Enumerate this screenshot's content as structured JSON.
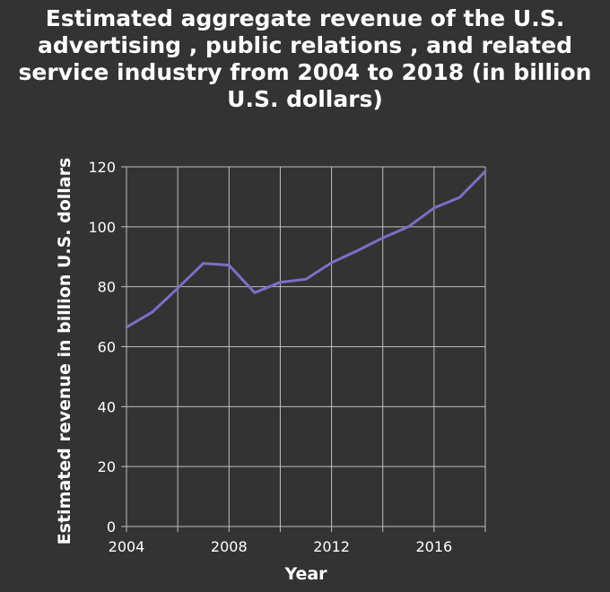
{
  "chart_data": {
    "type": "line",
    "title": "Estimated aggregate revenue of the U.S. advertising , public relations , and related service industry from 2004 to 2018 (in billion U.S. dollars)",
    "title_lines": [
      "Estimated aggregate revenue of the U.S.",
      "advertising , public relations , and related",
      "service industry from 2004 to 2018 (in billion",
      "U.S. dollars)"
    ],
    "xlabel": "Year",
    "ylabel": "Estimated revenue in billion U.S. dollars",
    "xlim": [
      2004,
      2018
    ],
    "ylim": [
      0,
      120
    ],
    "x_ticks": [
      2004,
      2006,
      2008,
      2010,
      2012,
      2014,
      2016,
      2018
    ],
    "x_tick_labels": [
      "2004",
      "",
      "2008",
      "",
      "2012",
      "",
      "2016",
      ""
    ],
    "y_ticks": [
      0,
      20,
      40,
      60,
      80,
      100,
      120
    ],
    "y_tick_labels": [
      "0",
      "20",
      "40",
      "60",
      "80",
      "100",
      "120"
    ],
    "grid": true,
    "series": [
      {
        "color": "#7b6fc6",
        "x": [
          2004,
          2005,
          2006,
          2007,
          2008,
          2009,
          2010,
          2011,
          2012,
          2013,
          2014,
          2015,
          2016,
          2017,
          2018
        ],
        "y": [
          66.5,
          71.5,
          79.5,
          87.8,
          87.2,
          78,
          81.5,
          82.5,
          88,
          92,
          96.3,
          100,
          106.3,
          109.8,
          118.5
        ]
      }
    ]
  },
  "colors": {
    "background": "#333333",
    "grid": "#bfbfbf",
    "text": "#ffffff",
    "line": "#7b6fc6"
  }
}
